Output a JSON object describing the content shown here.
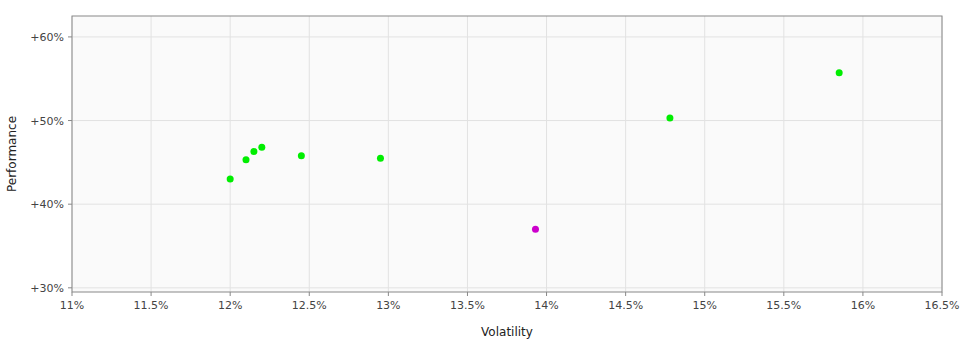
{
  "chart_data": {
    "type": "scatter",
    "xlabel": "Volatility",
    "ylabel": "Performance",
    "xlim": [
      0.11,
      0.165
    ],
    "ylim": [
      0.295,
      0.625
    ],
    "xticks": [
      {
        "value": 0.11,
        "label": "11%"
      },
      {
        "value": 0.115,
        "label": "11.5%"
      },
      {
        "value": 0.12,
        "label": "12%"
      },
      {
        "value": 0.125,
        "label": "12.5%"
      },
      {
        "value": 0.13,
        "label": "13%"
      },
      {
        "value": 0.135,
        "label": "13.5%"
      },
      {
        "value": 0.14,
        "label": "14%"
      },
      {
        "value": 0.145,
        "label": "14.5%"
      },
      {
        "value": 0.15,
        "label": "15%"
      },
      {
        "value": 0.155,
        "label": "15.5%"
      },
      {
        "value": 0.16,
        "label": "16%"
      },
      {
        "value": 0.165,
        "label": "16.5%"
      }
    ],
    "yticks": [
      {
        "value": 0.3,
        "label": "+30%"
      },
      {
        "value": 0.4,
        "label": "+40%"
      },
      {
        "value": 0.5,
        "label": "+50%"
      },
      {
        "value": 0.6,
        "label": "+60%"
      }
    ],
    "grid": true,
    "series": [
      {
        "color": "#00ee00",
        "x": [
          0.12,
          0.121,
          0.1215,
          0.122,
          0.1245,
          0.1295,
          0.1478,
          0.1585
        ],
        "values": [
          0.43,
          0.453,
          0.463,
          0.468,
          0.458,
          0.455,
          0.503,
          0.557
        ]
      },
      {
        "color": "#cc00cc",
        "x": [
          0.1393
        ],
        "values": [
          0.37
        ]
      }
    ]
  }
}
